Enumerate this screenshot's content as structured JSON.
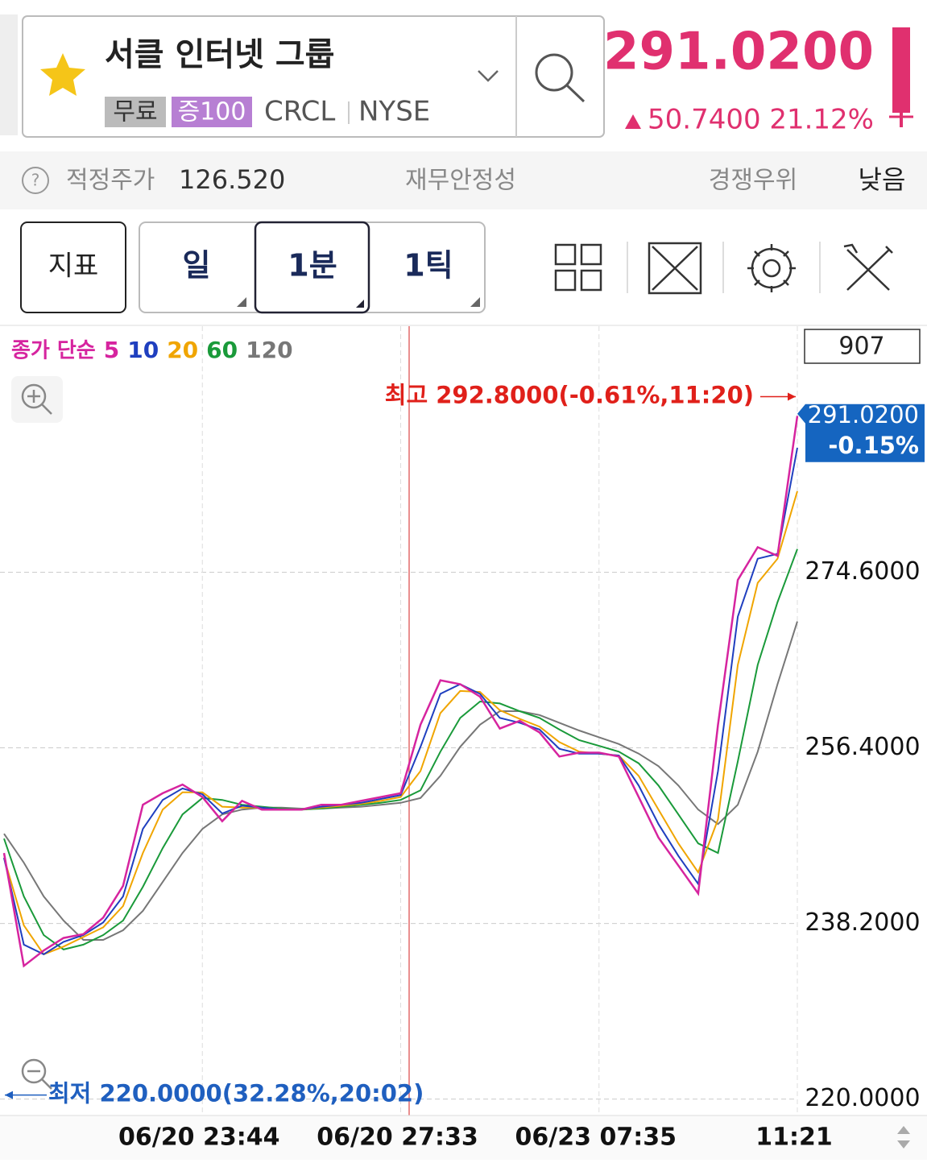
{
  "header": {
    "name": "서클 인터넷 그룹",
    "tags": [
      "무료",
      "증100"
    ],
    "ticker": "CRCL",
    "exchange": "NYSE",
    "price": "291.0200",
    "change": "50.7400",
    "change_pct": "21.12%"
  },
  "info": {
    "fair_price_label": "적정주가",
    "fair_price": "126.520",
    "stability": "재무안정성",
    "competitive": "경쟁우위",
    "rating": "낮음"
  },
  "toolbar": {
    "indicator": "지표",
    "periods": [
      "일",
      "1분",
      "1틱"
    ]
  },
  "chart_data": {
    "type": "line",
    "legend_title": "종가 단순",
    "count": "907",
    "x": [
      0,
      1,
      2,
      3,
      4,
      5,
      6,
      7,
      8,
      9,
      10,
      11,
      12,
      13,
      14,
      15,
      16,
      17,
      18,
      19,
      20,
      21,
      22,
      23,
      24,
      25,
      26,
      27,
      28,
      29,
      30,
      31,
      32,
      33,
      34,
      35,
      36,
      37,
      38,
      39,
      40
    ],
    "xlim": [
      0,
      40
    ],
    "xticks": [
      {
        "value": 10,
        "label": "06/20 23:44"
      },
      {
        "value": 20,
        "label": "06/20 27:33"
      },
      {
        "value": 30,
        "label": "06/23 07:35"
      },
      {
        "value": 40,
        "label": "11:21"
      }
    ],
    "ylim": [
      218.3,
      300.1
    ],
    "yticks": [
      {
        "value": 220,
        "label": "220.0000"
      },
      {
        "value": 238.2,
        "label": "238.2000"
      },
      {
        "value": 256.4,
        "label": "256.4000"
      },
      {
        "value": 274.6,
        "label": "274.6000"
      }
    ],
    "grid": true,
    "series": [
      {
        "name": "5",
        "color": "#d6249f",
        "values": [
          245.5,
          233.8,
          235.4,
          236.7,
          237.1,
          238.8,
          242.1,
          250.5,
          251.7,
          252.6,
          251.3,
          248.8,
          250.9,
          250.0,
          250.0,
          250.0,
          250.5,
          250.5,
          250.9,
          251.3,
          251.7,
          258.8,
          263.4,
          263.0,
          261.7,
          258.4,
          259.2,
          258.0,
          255.5,
          255.9,
          255.9,
          255.5,
          251.3,
          247.1,
          244.2,
          241.3,
          258.8,
          273.8,
          277.2,
          276.3,
          290.8
        ]
      },
      {
        "name": "10",
        "color": "#1f3fbf",
        "values": [
          245.0,
          236.0,
          235.0,
          236.3,
          237.0,
          238.3,
          241.0,
          248.0,
          251.0,
          252.2,
          251.6,
          249.6,
          250.4,
          250.2,
          250.0,
          250.0,
          250.3,
          250.5,
          250.7,
          251.1,
          251.5,
          256.5,
          262.0,
          263.0,
          262.0,
          259.5,
          259.0,
          258.3,
          256.3,
          255.8,
          255.8,
          255.6,
          252.5,
          248.5,
          245.2,
          242.3,
          254.0,
          270.0,
          276.0,
          276.5,
          287.5
        ]
      },
      {
        "name": "20",
        "color": "#f0a500",
        "values": [
          245.0,
          238.0,
          235.0,
          235.8,
          236.8,
          237.8,
          240.0,
          245.5,
          250.0,
          251.8,
          251.8,
          250.3,
          250.2,
          250.2,
          250.0,
          250.0,
          250.2,
          250.4,
          250.6,
          250.9,
          251.3,
          254.0,
          260.0,
          262.3,
          262.2,
          260.3,
          259.4,
          258.6,
          257.0,
          256.0,
          255.8,
          255.6,
          253.5,
          250.0,
          246.5,
          243.5,
          249.0,
          265.0,
          273.5,
          276.0,
          283.0
        ]
      },
      {
        "name": "60",
        "color": "#1a9a3a",
        "values": [
          247.0,
          241.0,
          237.0,
          235.5,
          236.0,
          237.0,
          238.5,
          242.0,
          246.0,
          249.5,
          251.2,
          251.0,
          250.5,
          250.3,
          250.1,
          250.0,
          250.1,
          250.3,
          250.5,
          250.7,
          251.0,
          252.0,
          256.0,
          259.5,
          261.2,
          261.0,
          260.2,
          259.5,
          258.3,
          257.2,
          256.6,
          256.0,
          254.8,
          252.5,
          249.5,
          246.5,
          245.5,
          255.0,
          265.0,
          271.5,
          277.0
        ]
      },
      {
        "name": "120",
        "color": "#777777",
        "values": [
          247.5,
          244.5,
          241.0,
          238.5,
          236.5,
          236.5,
          237.5,
          239.5,
          242.5,
          245.5,
          248.0,
          249.5,
          250.0,
          250.2,
          250.2,
          250.1,
          250.1,
          250.2,
          250.3,
          250.5,
          250.7,
          251.2,
          253.5,
          256.5,
          258.8,
          260.2,
          260.2,
          259.8,
          259.0,
          258.2,
          257.5,
          256.8,
          255.8,
          254.5,
          252.5,
          250.0,
          248.5,
          250.5,
          256.0,
          263.0,
          269.5
        ]
      }
    ],
    "high": {
      "label": "최고 292.8000(-0.61%,11:20)",
      "value": 292.8
    },
    "low": {
      "label": "최저 220.0000(32.28%,20:02)",
      "value": 220
    },
    "last": {
      "value": 291.02,
      "label": "291.0200",
      "change": "-0.15%"
    }
  }
}
